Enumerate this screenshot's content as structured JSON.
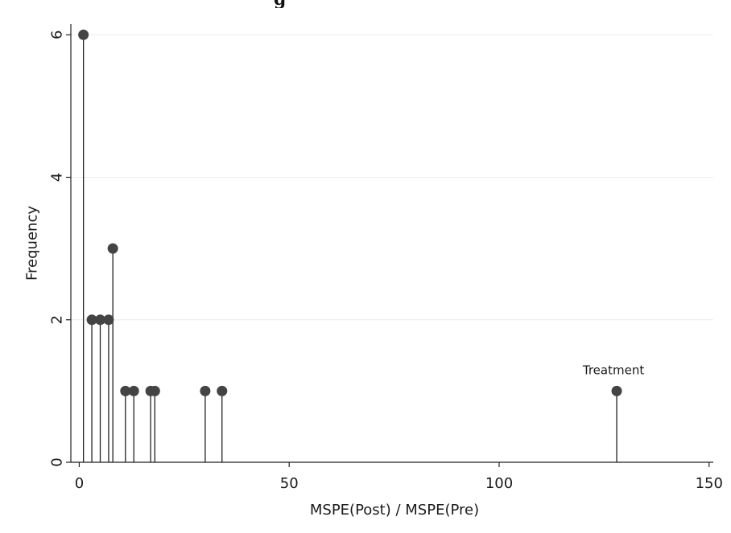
{
  "top_title": "g",
  "chart_data": {
    "type": "dropline",
    "title": "",
    "xlabel": "MSPE(Post) / MSPE(Pre)",
    "ylabel": "Frequency",
    "xlim": [
      -2,
      151
    ],
    "ylim": [
      0,
      6.15
    ],
    "x_ticks": [
      0,
      50,
      100,
      150
    ],
    "y_ticks": [
      0,
      2,
      4,
      6
    ],
    "grid": true,
    "legend": "none",
    "points": [
      {
        "x": 1,
        "y": 6
      },
      {
        "x": 3,
        "y": 2
      },
      {
        "x": 5,
        "y": 2
      },
      {
        "x": 7,
        "y": 2
      },
      {
        "x": 8,
        "y": 3
      },
      {
        "x": 11,
        "y": 1
      },
      {
        "x": 13,
        "y": 1
      },
      {
        "x": 17,
        "y": 1
      },
      {
        "x": 18,
        "y": 1
      },
      {
        "x": 30,
        "y": 1
      },
      {
        "x": 34,
        "y": 1
      },
      {
        "x": 128,
        "y": 1,
        "label": "Treatment"
      }
    ],
    "colors": {
      "marker": "#444444",
      "stem": "#222222",
      "grid": "#e8eef0",
      "axis": "#222222"
    }
  }
}
